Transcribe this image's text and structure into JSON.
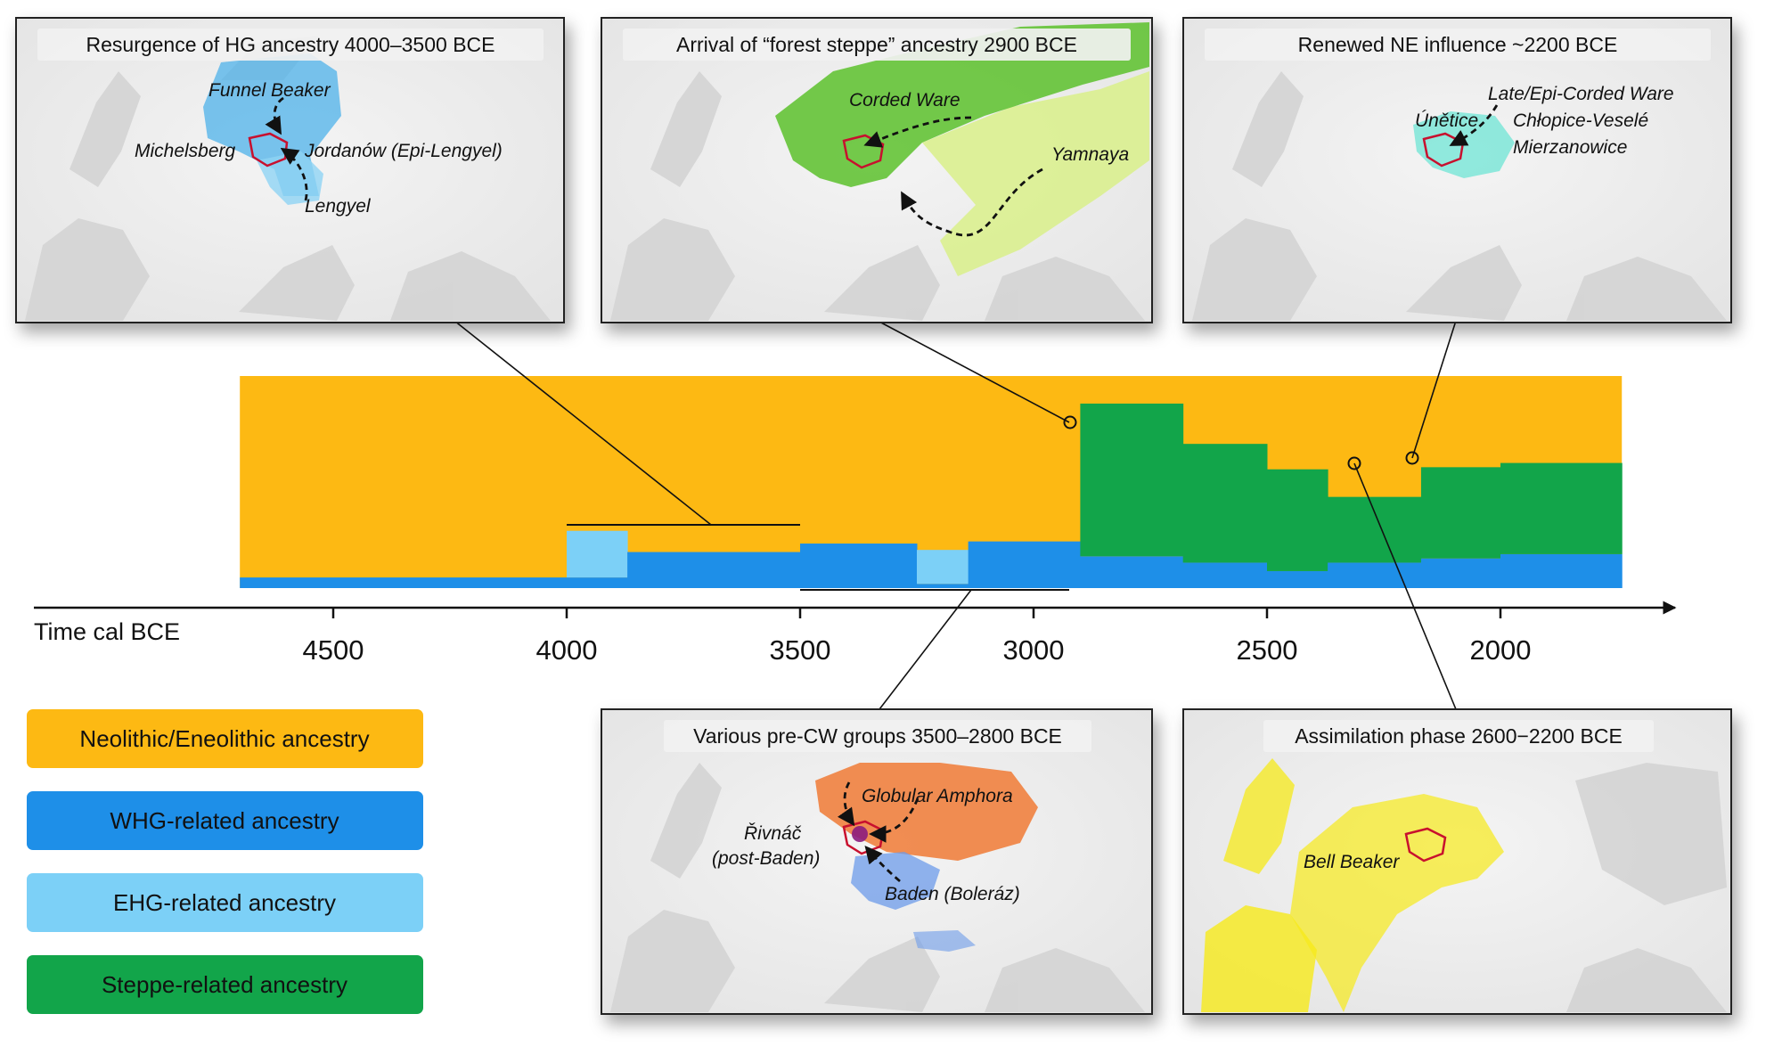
{
  "axis": {
    "title": "Time cal BCE",
    "ticks": [
      {
        "value": 4500,
        "label": "4500"
      },
      {
        "value": 4000,
        "label": "4000"
      },
      {
        "value": 3500,
        "label": "3500"
      },
      {
        "value": 3000,
        "label": "3000"
      },
      {
        "value": 2500,
        "label": "2500"
      },
      {
        "value": 2000,
        "label": "2000"
      }
    ]
  },
  "legend": [
    {
      "label": "Neolithic/Eneolithic ancestry",
      "color": "#FDB913"
    },
    {
      "label": "WHG-related ancestry",
      "color": "#1E8FE8"
    },
    {
      "label": "EHG-related ancestry",
      "color": "#7CD0F7"
    },
    {
      "label": "Steppe-related ancestry",
      "color": "#12A54A"
    }
  ],
  "colors": {
    "neolithic": "#FDB913",
    "whg": "#1E8FE8",
    "ehg": "#7CD0F7",
    "steppe": "#12A54A",
    "region_outline": "#C8102E",
    "funnel_beaker": "#4DB2EA",
    "corded_ware": "#5CC12B",
    "yamnaya": "#D9F08A",
    "unetice": "#7EE6D8",
    "globular_amphora": "#F07A35",
    "baden": "#6C9BEA",
    "rivnac": "#8B1C7E",
    "bell_beaker": "#F6EA1A"
  },
  "panels": [
    {
      "id": "hg-resurgence",
      "title": "Resurgence of HG ancestry 4000–3500 BCE",
      "labels": [
        "Funnel Beaker",
        "Michelsberg",
        "Jordanów (Epi-Lengyel)",
        "Lengyel"
      ]
    },
    {
      "id": "forest-steppe",
      "title": "Arrival of “forest steppe” ancestry 2900 BCE",
      "labels": [
        "Corded Ware",
        "Yamnaya"
      ]
    },
    {
      "id": "ne-influence",
      "title": "Renewed NE influence ~2200 BCE",
      "labels": [
        "Late/Epi-Corded Ware",
        "Únětice",
        "Chłopice-Veselé",
        "Mierzanowice"
      ]
    },
    {
      "id": "pre-cw",
      "title": "Various pre-CW groups 3500–2800 BCE",
      "labels": [
        "Globular Amphora",
        "Řivnáč",
        "(post-Baden)",
        "Baden (Boleráz)"
      ]
    },
    {
      "id": "assimilation",
      "title": "Assimilation phase 2600−2200 BCE",
      "labels": [
        "Bell Beaker"
      ]
    }
  ]
}
